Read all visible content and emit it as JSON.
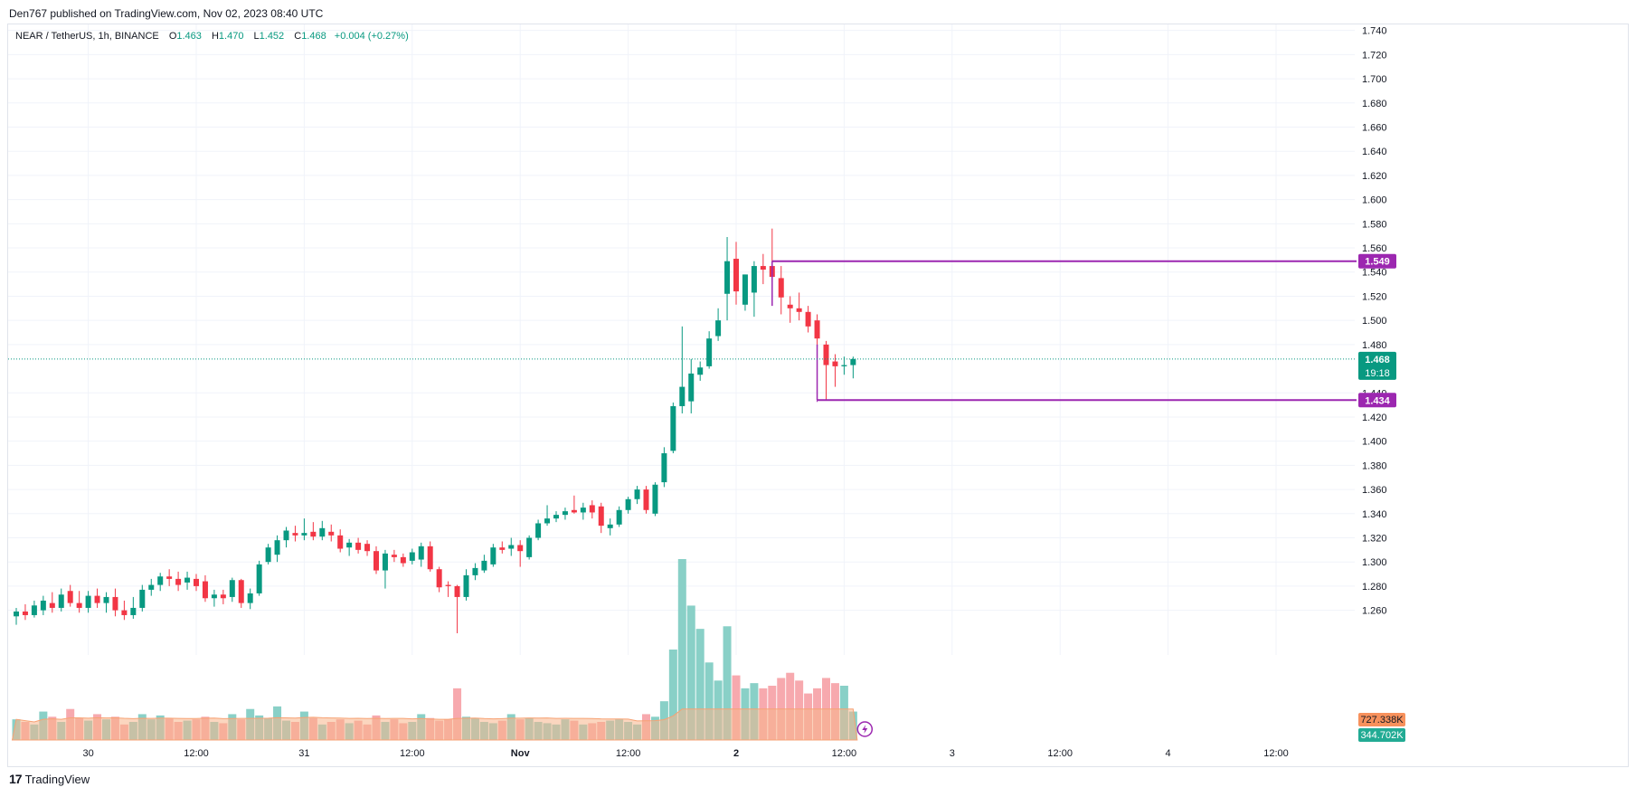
{
  "header": {
    "published_line": "Den767 published on TradingView.com, Nov 02, 2023 08:40 UTC"
  },
  "legend": {
    "symbol": "NEAR / TetherUS, 1h, BINANCE",
    "open_label": "O",
    "open": "1.463",
    "high_label": "H",
    "high": "1.470",
    "low_label": "L",
    "low": "1.452",
    "close_label": "C",
    "close": "1.468",
    "change": "+0.004 (+0.27%)"
  },
  "footer": {
    "brand": "TradingView",
    "brand_mark": "17"
  },
  "colors": {
    "up": "#089981",
    "down": "#f23645",
    "level": "#9c27b0",
    "grid": "#f0f3fa",
    "vol_up": "#89d0c7",
    "vol_down": "#f7a9ae",
    "vol_ma": "#f7b48a"
  },
  "chart_data": {
    "type": "candlestick",
    "ylim": [
      1.235,
      1.745
    ],
    "y_ticks": [
      "1.740",
      "1.720",
      "1.700",
      "1.680",
      "1.660",
      "1.640",
      "1.620",
      "1.600",
      "1.580",
      "1.560",
      "1.540",
      "1.520",
      "1.500",
      "1.480",
      "1.440",
      "1.420",
      "1.400",
      "1.380",
      "1.360",
      "1.340",
      "1.320",
      "1.300",
      "1.280",
      "1.260"
    ],
    "x_ticks": [
      {
        "label": "30",
        "bar": 8
      },
      {
        "label": "12:00",
        "bar": 20
      },
      {
        "label": "31",
        "bar": 32
      },
      {
        "label": "12:00",
        "bar": 44
      },
      {
        "label": "Nov",
        "bar": 56,
        "bold": true
      },
      {
        "label": "12:00",
        "bar": 68
      },
      {
        "label": "2",
        "bar": 80,
        "bold": true
      },
      {
        "label": "12:00",
        "bar": 92
      },
      {
        "label": "3",
        "bar": 104
      },
      {
        "label": "12:00",
        "bar": 116
      },
      {
        "label": "4",
        "bar": 128
      },
      {
        "label": "12:00",
        "bar": 140
      }
    ],
    "candles": [
      {
        "o": 1.255,
        "h": 1.262,
        "l": 1.248,
        "c": 1.259
      },
      {
        "o": 1.259,
        "h": 1.265,
        "l": 1.252,
        "c": 1.256
      },
      {
        "o": 1.256,
        "h": 1.268,
        "l": 1.254,
        "c": 1.264
      },
      {
        "o": 1.26,
        "h": 1.272,
        "l": 1.256,
        "c": 1.268
      },
      {
        "o": 1.266,
        "h": 1.275,
        "l": 1.258,
        "c": 1.262
      },
      {
        "o": 1.262,
        "h": 1.278,
        "l": 1.259,
        "c": 1.273
      },
      {
        "o": 1.276,
        "h": 1.281,
        "l": 1.263,
        "c": 1.266
      },
      {
        "o": 1.266,
        "h": 1.276,
        "l": 1.258,
        "c": 1.262
      },
      {
        "o": 1.262,
        "h": 1.276,
        "l": 1.258,
        "c": 1.272
      },
      {
        "o": 1.272,
        "h": 1.278,
        "l": 1.262,
        "c": 1.266
      },
      {
        "o": 1.266,
        "h": 1.275,
        "l": 1.258,
        "c": 1.271
      },
      {
        "o": 1.271,
        "h": 1.278,
        "l": 1.255,
        "c": 1.26
      },
      {
        "o": 1.26,
        "h": 1.268,
        "l": 1.252,
        "c": 1.256
      },
      {
        "o": 1.256,
        "h": 1.271,
        "l": 1.253,
        "c": 1.262
      },
      {
        "o": 1.262,
        "h": 1.281,
        "l": 1.259,
        "c": 1.277
      },
      {
        "o": 1.277,
        "h": 1.286,
        "l": 1.272,
        "c": 1.281
      },
      {
        "o": 1.281,
        "h": 1.291,
        "l": 1.276,
        "c": 1.288
      },
      {
        "o": 1.288,
        "h": 1.294,
        "l": 1.28,
        "c": 1.286
      },
      {
        "o": 1.286,
        "h": 1.292,
        "l": 1.276,
        "c": 1.281
      },
      {
        "o": 1.283,
        "h": 1.292,
        "l": 1.277,
        "c": 1.287
      },
      {
        "o": 1.286,
        "h": 1.29,
        "l": 1.276,
        "c": 1.28
      },
      {
        "o": 1.284,
        "h": 1.289,
        "l": 1.267,
        "c": 1.27
      },
      {
        "o": 1.27,
        "h": 1.277,
        "l": 1.263,
        "c": 1.273
      },
      {
        "o": 1.273,
        "h": 1.277,
        "l": 1.265,
        "c": 1.27
      },
      {
        "o": 1.271,
        "h": 1.287,
        "l": 1.267,
        "c": 1.285
      },
      {
        "o": 1.285,
        "h": 1.286,
        "l": 1.262,
        "c": 1.266
      },
      {
        "o": 1.266,
        "h": 1.278,
        "l": 1.261,
        "c": 1.274
      },
      {
        "o": 1.274,
        "h": 1.301,
        "l": 1.272,
        "c": 1.298
      },
      {
        "o": 1.3,
        "h": 1.315,
        "l": 1.298,
        "c": 1.312
      },
      {
        "o": 1.306,
        "h": 1.322,
        "l": 1.3,
        "c": 1.318
      },
      {
        "o": 1.318,
        "h": 1.329,
        "l": 1.312,
        "c": 1.326
      },
      {
        "o": 1.324,
        "h": 1.33,
        "l": 1.317,
        "c": 1.322
      },
      {
        "o": 1.322,
        "h": 1.336,
        "l": 1.318,
        "c": 1.324
      },
      {
        "o": 1.325,
        "h": 1.333,
        "l": 1.318,
        "c": 1.321
      },
      {
        "o": 1.321,
        "h": 1.334,
        "l": 1.318,
        "c": 1.328
      },
      {
        "o": 1.325,
        "h": 1.331,
        "l": 1.317,
        "c": 1.322
      },
      {
        "o": 1.322,
        "h": 1.327,
        "l": 1.308,
        "c": 1.311
      },
      {
        "o": 1.312,
        "h": 1.319,
        "l": 1.305,
        "c": 1.316
      },
      {
        "o": 1.316,
        "h": 1.32,
        "l": 1.307,
        "c": 1.31
      },
      {
        "o": 1.315,
        "h": 1.318,
        "l": 1.305,
        "c": 1.309
      },
      {
        "o": 1.309,
        "h": 1.313,
        "l": 1.29,
        "c": 1.293
      },
      {
        "o": 1.293,
        "h": 1.31,
        "l": 1.278,
        "c": 1.307
      },
      {
        "o": 1.306,
        "h": 1.31,
        "l": 1.3,
        "c": 1.304
      },
      {
        "o": 1.304,
        "h": 1.307,
        "l": 1.296,
        "c": 1.299
      },
      {
        "o": 1.301,
        "h": 1.311,
        "l": 1.298,
        "c": 1.308
      },
      {
        "o": 1.302,
        "h": 1.316,
        "l": 1.296,
        "c": 1.313
      },
      {
        "o": 1.313,
        "h": 1.317,
        "l": 1.292,
        "c": 1.294
      },
      {
        "o": 1.294,
        "h": 1.296,
        "l": 1.275,
        "c": 1.279
      },
      {
        "o": 1.281,
        "h": 1.284,
        "l": 1.271,
        "c": 1.28
      },
      {
        "o": 1.28,
        "h": 1.281,
        "l": 1.241,
        "c": 1.271
      },
      {
        "o": 1.271,
        "h": 1.294,
        "l": 1.268,
        "c": 1.289
      },
      {
        "o": 1.289,
        "h": 1.299,
        "l": 1.285,
        "c": 1.295
      },
      {
        "o": 1.293,
        "h": 1.306,
        "l": 1.291,
        "c": 1.301
      },
      {
        "o": 1.298,
        "h": 1.315,
        "l": 1.296,
        "c": 1.312
      },
      {
        "o": 1.312,
        "h": 1.317,
        "l": 1.307,
        "c": 1.31
      },
      {
        "o": 1.311,
        "h": 1.32,
        "l": 1.305,
        "c": 1.314
      },
      {
        "o": 1.314,
        "h": 1.318,
        "l": 1.296,
        "c": 1.309
      },
      {
        "o": 1.304,
        "h": 1.322,
        "l": 1.302,
        "c": 1.32
      },
      {
        "o": 1.32,
        "h": 1.335,
        "l": 1.318,
        "c": 1.332
      },
      {
        "o": 1.332,
        "h": 1.347,
        "l": 1.33,
        "c": 1.336
      },
      {
        "o": 1.336,
        "h": 1.342,
        "l": 1.333,
        "c": 1.339
      },
      {
        "o": 1.339,
        "h": 1.345,
        "l": 1.335,
        "c": 1.342
      },
      {
        "o": 1.343,
        "h": 1.355,
        "l": 1.34,
        "c": 1.341
      },
      {
        "o": 1.341,
        "h": 1.349,
        "l": 1.335,
        "c": 1.345
      },
      {
        "o": 1.347,
        "h": 1.351,
        "l": 1.336,
        "c": 1.341
      },
      {
        "o": 1.346,
        "h": 1.349,
        "l": 1.324,
        "c": 1.33
      },
      {
        "o": 1.328,
        "h": 1.336,
        "l": 1.322,
        "c": 1.331
      },
      {
        "o": 1.331,
        "h": 1.346,
        "l": 1.329,
        "c": 1.343
      },
      {
        "o": 1.343,
        "h": 1.354,
        "l": 1.34,
        "c": 1.352
      },
      {
        "o": 1.352,
        "h": 1.363,
        "l": 1.348,
        "c": 1.36
      },
      {
        "o": 1.36,
        "h": 1.363,
        "l": 1.34,
        "c": 1.343
      },
      {
        "o": 1.34,
        "h": 1.366,
        "l": 1.338,
        "c": 1.364
      },
      {
        "o": 1.366,
        "h": 1.395,
        "l": 1.362,
        "c": 1.39
      },
      {
        "o": 1.392,
        "h": 1.432,
        "l": 1.39,
        "c": 1.429
      },
      {
        "o": 1.429,
        "h": 1.495,
        "l": 1.423,
        "c": 1.445
      },
      {
        "o": 1.433,
        "h": 1.468,
        "l": 1.423,
        "c": 1.456
      },
      {
        "o": 1.455,
        "h": 1.466,
        "l": 1.45,
        "c": 1.461
      },
      {
        "o": 1.462,
        "h": 1.491,
        "l": 1.46,
        "c": 1.485
      },
      {
        "o": 1.487,
        "h": 1.51,
        "l": 1.483,
        "c": 1.5
      },
      {
        "o": 1.522,
        "h": 1.569,
        "l": 1.5,
        "c": 1.549
      },
      {
        "o": 1.551,
        "h": 1.565,
        "l": 1.513,
        "c": 1.524
      },
      {
        "o": 1.513,
        "h": 1.538,
        "l": 1.508,
        "c": 1.538
      },
      {
        "o": 1.523,
        "h": 1.549,
        "l": 1.503,
        "c": 1.545
      },
      {
        "o": 1.545,
        "h": 1.555,
        "l": 1.53,
        "c": 1.542
      },
      {
        "o": 1.545,
        "h": 1.576,
        "l": 1.532,
        "c": 1.536
      },
      {
        "o": 1.535,
        "h": 1.545,
        "l": 1.505,
        "c": 1.519
      },
      {
        "o": 1.513,
        "h": 1.52,
        "l": 1.498,
        "c": 1.51
      },
      {
        "o": 1.51,
        "h": 1.523,
        "l": 1.5,
        "c": 1.507
      },
      {
        "o": 1.507,
        "h": 1.512,
        "l": 1.49,
        "c": 1.495
      },
      {
        "o": 1.5,
        "h": 1.505,
        "l": 1.478,
        "c": 1.485
      },
      {
        "o": 1.48,
        "h": 1.483,
        "l": 1.434,
        "c": 1.463
      },
      {
        "o": 1.466,
        "h": 1.472,
        "l": 1.445,
        "c": 1.462
      },
      {
        "o": 1.462,
        "h": 1.47,
        "l": 1.455,
        "c": 1.463
      },
      {
        "o": 1.463,
        "h": 1.47,
        "l": 1.452,
        "c": 1.468
      }
    ],
    "volume": {
      "max": 1200000,
      "values": [
        80,
        70,
        60,
        110,
        90,
        70,
        120,
        85,
        75,
        100,
        80,
        90,
        60,
        70,
        100,
        80,
        95,
        85,
        70,
        75,
        80,
        90,
        70,
        65,
        100,
        80,
        120,
        95,
        85,
        130,
        75,
        70,
        110,
        85,
        60,
        70,
        80,
        65,
        75,
        60,
        95,
        70,
        80,
        65,
        70,
        100,
        85,
        75,
        80,
        200,
        90,
        85,
        70,
        65,
        75,
        100,
        80,
        85,
        70,
        65,
        60,
        80,
        75,
        60,
        65,
        70,
        75,
        80,
        70,
        60,
        100,
        90,
        150,
        350,
        700,
        520,
        430,
        300,
        230,
        440,
        250,
        200,
        220,
        200,
        210,
        240,
        260,
        230,
        180,
        200,
        240,
        220,
        210,
        110
      ],
      "up_down_note": "bar colors follow candle direction"
    },
    "volume_ma_label": "727.338K",
    "volume_label": "344.702K",
    "levels": [
      {
        "value": 1.549,
        "label": "1.549",
        "start_bar": 84
      },
      {
        "value": 1.434,
        "label": "1.434",
        "start_bar": 89
      }
    ],
    "last_price": {
      "value": 1.468,
      "label": "1.468",
      "countdown": "19:18"
    }
  }
}
